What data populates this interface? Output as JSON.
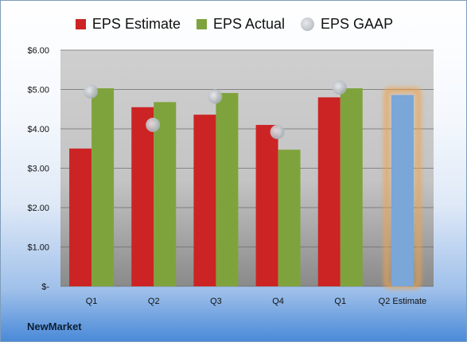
{
  "company": "NewMarket",
  "colors": {
    "estimate": "#cc2424",
    "actual": "#7fa33c",
    "gaap": "#b9bfc6",
    "forecast": "#7aa6d8",
    "forecast_glow": "#f0a24a"
  },
  "chart_data": {
    "type": "bar",
    "categories": [
      "Q1",
      "Q2",
      "Q3",
      "Q4",
      "Q1",
      "Q2 Estimate"
    ],
    "series": [
      {
        "name": "EPS Estimate",
        "values": [
          3.5,
          4.55,
          4.36,
          4.1,
          4.8,
          null
        ]
      },
      {
        "name": "EPS Actual",
        "values": [
          5.03,
          4.68,
          4.91,
          3.47,
          5.03,
          4.86
        ]
      },
      {
        "name": "EPS GAAP",
        "marker": "circle",
        "values": [
          4.95,
          4.1,
          4.82,
          3.92,
          5.05,
          null
        ]
      }
    ],
    "highlight_category": "Q2 Estimate",
    "y_tick_labels": [
      "$-",
      "$1.00",
      "$2.00",
      "$3.00",
      "$4.00",
      "$5.00",
      "$6.00"
    ],
    "ylim": [
      0,
      6
    ],
    "grid": true,
    "legend_position": "top"
  }
}
